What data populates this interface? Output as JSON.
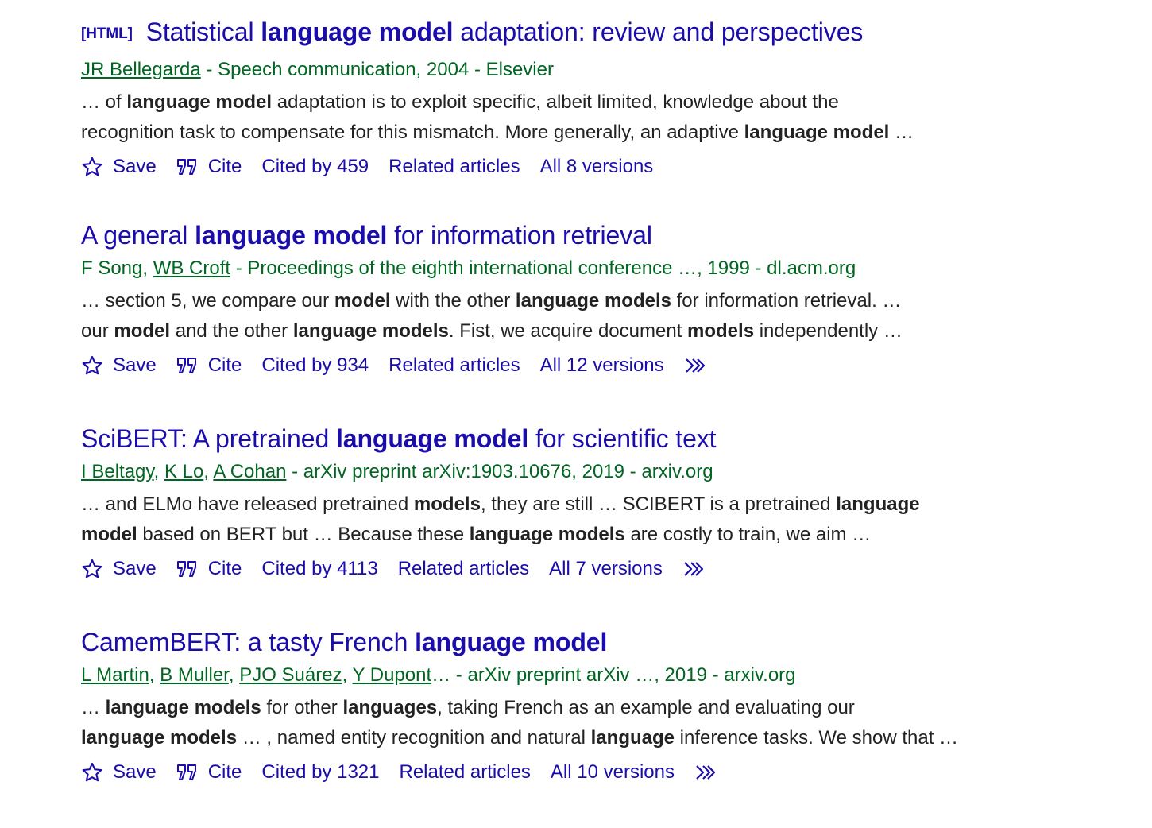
{
  "results": [
    {
      "format_tag": "[HTML]",
      "title": [
        {
          "t": "Statistical ",
          "b": false
        },
        {
          "t": "language model",
          "b": true
        },
        {
          "t": " adaptation: review and perspectives",
          "b": false
        }
      ],
      "meta": [
        {
          "t": "JR Bellegarda",
          "link": true
        },
        {
          "t": " - Speech communication, 2004 - Elsevier",
          "link": false
        }
      ],
      "snippet_lines": [
        [
          {
            "t": "… of ",
            "b": false
          },
          {
            "t": "language model",
            "b": true
          },
          {
            "t": " adaptation is to exploit specific, albeit limited, knowledge about the",
            "b": false
          }
        ],
        [
          {
            "t": "recognition task to compensate for this mismatch. More generally, an adaptive ",
            "b": false
          },
          {
            "t": "language model",
            "b": true
          },
          {
            "t": " …",
            "b": false
          }
        ]
      ],
      "actions": {
        "save": "Save",
        "cite": "Cite",
        "cited_by": "Cited by 459",
        "related": "Related articles",
        "versions": "All 8 versions",
        "more": false
      }
    },
    {
      "format_tag": "",
      "title": [
        {
          "t": "A general ",
          "b": false
        },
        {
          "t": "language model",
          "b": true
        },
        {
          "t": " for information retrieval",
          "b": false
        }
      ],
      "meta": [
        {
          "t": "F Song, ",
          "link": false
        },
        {
          "t": "WB Croft",
          "link": true
        },
        {
          "t": " - Proceedings of the eighth international conference …, 1999 - dl.acm.org",
          "link": false
        }
      ],
      "snippet_lines": [
        [
          {
            "t": "… section 5, we compare our ",
            "b": false
          },
          {
            "t": "model",
            "b": true
          },
          {
            "t": " with the other ",
            "b": false
          },
          {
            "t": "language models",
            "b": true
          },
          {
            "t": " for information retrieval. …",
            "b": false
          }
        ],
        [
          {
            "t": "our ",
            "b": false
          },
          {
            "t": "model",
            "b": true
          },
          {
            "t": " and the other ",
            "b": false
          },
          {
            "t": "language models",
            "b": true
          },
          {
            "t": ". Fist, we acquire document ",
            "b": false
          },
          {
            "t": "models",
            "b": true
          },
          {
            "t": " independently …",
            "b": false
          }
        ]
      ],
      "actions": {
        "save": "Save",
        "cite": "Cite",
        "cited_by": "Cited by 934",
        "related": "Related articles",
        "versions": "All 12 versions",
        "more": true
      }
    },
    {
      "format_tag": "",
      "title": [
        {
          "t": "SciBERT: A pretrained ",
          "b": false
        },
        {
          "t": "language model",
          "b": true
        },
        {
          "t": " for scientific text",
          "b": false
        }
      ],
      "meta": [
        {
          "t": "I Beltagy",
          "link": true
        },
        {
          "t": ", ",
          "link": false
        },
        {
          "t": "K Lo",
          "link": true
        },
        {
          "t": ", ",
          "link": false
        },
        {
          "t": "A Cohan",
          "link": true
        },
        {
          "t": " - arXiv preprint arXiv:1903.10676, 2019 - arxiv.org",
          "link": false
        }
      ],
      "snippet_lines": [
        [
          {
            "t": "… and ELMo have released pretrained ",
            "b": false
          },
          {
            "t": "models",
            "b": true
          },
          {
            "t": ", they are still … SCIBERT is a pretrained ",
            "b": false
          },
          {
            "t": "language",
            "b": true
          }
        ],
        [
          {
            "t": "model",
            "b": true
          },
          {
            "t": " based on BERT but … Because these ",
            "b": false
          },
          {
            "t": "language models",
            "b": true
          },
          {
            "t": " are costly to train, we aim …",
            "b": false
          }
        ]
      ],
      "actions": {
        "save": "Save",
        "cite": "Cite",
        "cited_by": "Cited by 4113",
        "related": "Related articles",
        "versions": "All 7 versions",
        "more": true
      }
    },
    {
      "format_tag": "",
      "title": [
        {
          "t": "CamemBERT: a tasty French ",
          "b": false
        },
        {
          "t": "language model",
          "b": true
        }
      ],
      "meta": [
        {
          "t": "L Martin",
          "link": true
        },
        {
          "t": ", ",
          "link": false
        },
        {
          "t": "B Muller",
          "link": true
        },
        {
          "t": ", ",
          "link": false
        },
        {
          "t": "PJO Suárez",
          "link": true
        },
        {
          "t": ", ",
          "link": false
        },
        {
          "t": "Y Dupont",
          "link": true
        },
        {
          "t": "… - arXiv preprint arXiv …, 2019 - arxiv.org",
          "link": false
        }
      ],
      "snippet_lines": [
        [
          {
            "t": "… ",
            "b": false
          },
          {
            "t": "language models",
            "b": true
          },
          {
            "t": " for other ",
            "b": false
          },
          {
            "t": "languages",
            "b": true
          },
          {
            "t": ", taking French as an example and evaluating our",
            "b": false
          }
        ],
        [
          {
            "t": "language models",
            "b": true
          },
          {
            "t": " … , named entity recognition and natural ",
            "b": false
          },
          {
            "t": "language",
            "b": true
          },
          {
            "t": " inference tasks. We show that …",
            "b": false
          }
        ]
      ],
      "actions": {
        "save": "Save",
        "cite": "Cite",
        "cited_by": "Cited by 1321",
        "related": "Related articles",
        "versions": "All 10 versions",
        "more": true
      }
    }
  ],
  "colors": {
    "link": "#1a0dab",
    "meta": "#006621",
    "snippet": "#222222"
  },
  "icons": {
    "save": "star-outline-icon",
    "cite": "quote-icon",
    "more": "double-chevron-right-icon"
  }
}
